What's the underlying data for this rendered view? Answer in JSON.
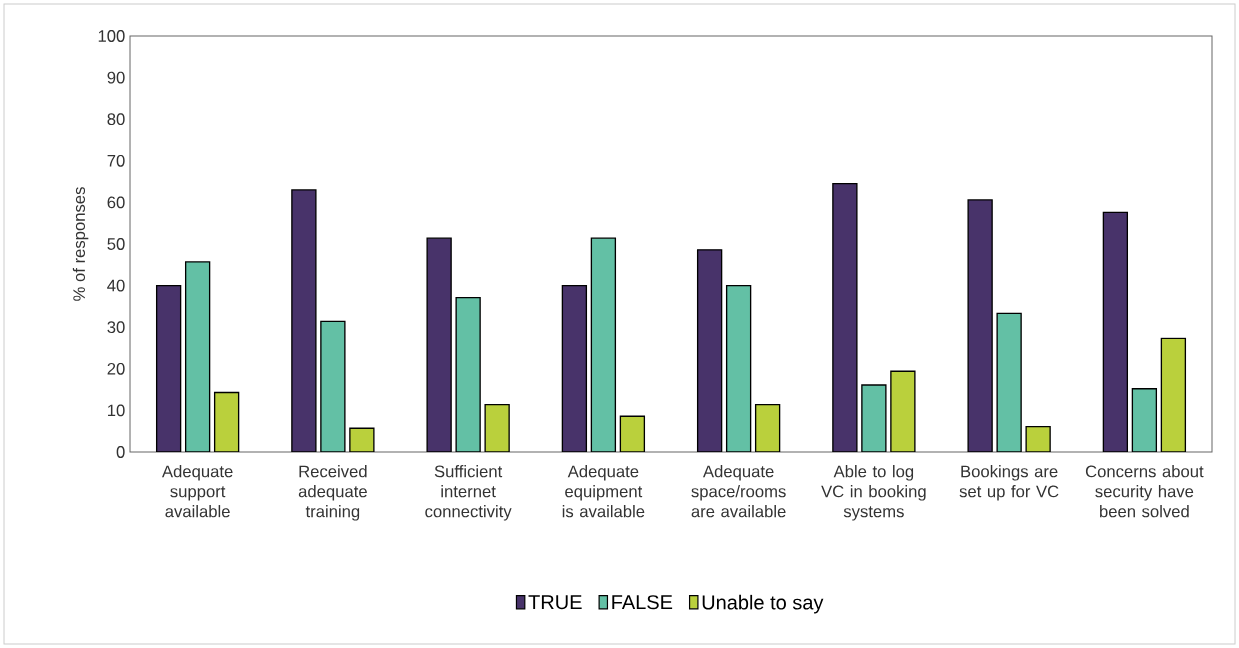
{
  "chart_data": {
    "type": "bar",
    "ylabel": "% of responses",
    "categories": [
      "Adequate support available",
      "Received adequate training",
      "Sufficient internet connectivity",
      "Adequate equipment is available",
      "Adequate space/rooms are available",
      "Able to log VC in booking systems",
      "Bookings are set up for VC",
      "Concerns about security have been solved"
    ],
    "series": [
      {
        "name": "TRUE",
        "color": "#48336a",
        "values": [
          40,
          63,
          51.4,
          40,
          48.6,
          64.5,
          60.6,
          57.6
        ]
      },
      {
        "name": "FALSE",
        "color": "#63c0a5",
        "values": [
          45.7,
          31.4,
          37.1,
          51.4,
          40,
          16.1,
          33.3,
          15.2
        ]
      },
      {
        "name": "Unable to say",
        "color": "#bad03c",
        "values": [
          14.3,
          5.7,
          11.4,
          8.6,
          11.4,
          19.4,
          6.1,
          27.3
        ]
      }
    ],
    "ylim": [
      0,
      100
    ],
    "yticks": [
      0,
      10,
      20,
      30,
      40,
      50,
      60,
      70,
      80,
      90,
      100
    ],
    "grid": false,
    "legend": "bottom"
  }
}
